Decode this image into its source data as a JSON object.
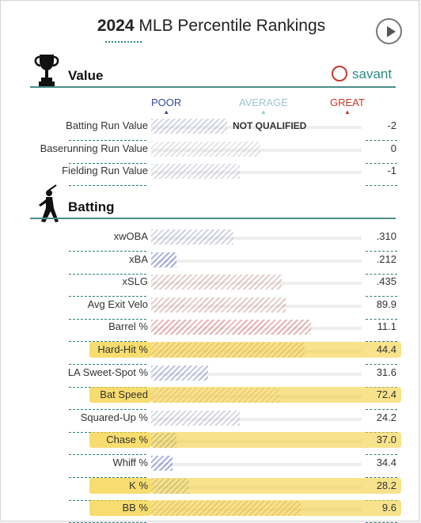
{
  "header": {
    "year": "2024",
    "title": "MLB Percentile Rankings"
  },
  "brand": {
    "name": "savant",
    "color": "#2e8a87"
  },
  "scale": {
    "poor": "POOR",
    "average": "AVERAGE",
    "great": "GREAT",
    "poor_color": "#3c4aa0",
    "average_color": "#9fc5cf",
    "great_color": "#c23b2a"
  },
  "value_section": {
    "title": "Value",
    "note": "NOT QUALIFIED",
    "rows": [
      {
        "label": "Batting Run Value",
        "value": "-2",
        "percentile": 36
      },
      {
        "label": "Baserunning Run Value",
        "value": "0",
        "percentile": 52
      },
      {
        "label": "Fielding Run Value",
        "value": "-1",
        "percentile": 42
      }
    ]
  },
  "batting_section": {
    "title": "Batting",
    "rows": [
      {
        "label": "xwOBA",
        "value": ".310",
        "percentile": 39,
        "highlighted": false
      },
      {
        "label": "xBA",
        "value": ".212",
        "percentile": 12,
        "highlighted": false
      },
      {
        "label": "xSLG",
        "value": ".435",
        "percentile": 62,
        "highlighted": false
      },
      {
        "label": "Avg Exit Velo",
        "value": "89.9",
        "percentile": 64,
        "highlighted": false
      },
      {
        "label": "Barrel %",
        "value": "11.1",
        "percentile": 76,
        "highlighted": false
      },
      {
        "label": "Hard-Hit %",
        "value": "44.4",
        "percentile": 73,
        "highlighted": true
      },
      {
        "label": "LA Sweet-Spot %",
        "value": "31.6",
        "percentile": 27,
        "highlighted": false
      },
      {
        "label": "Bat Speed",
        "value": "72.4",
        "percentile": 61,
        "highlighted": true
      },
      {
        "label": "Squared-Up %",
        "value": "24.2",
        "percentile": 42,
        "highlighted": false
      },
      {
        "label": "Chase %",
        "value": "37.0",
        "percentile": 12,
        "highlighted": true
      },
      {
        "label": "Whiff %",
        "value": "34.4",
        "percentile": 10,
        "highlighted": false
      },
      {
        "label": "K %",
        "value": "28.2",
        "percentile": 18,
        "highlighted": true
      },
      {
        "label": "BB %",
        "value": "9.6",
        "percentile": 71,
        "highlighted": true
      }
    ]
  }
}
